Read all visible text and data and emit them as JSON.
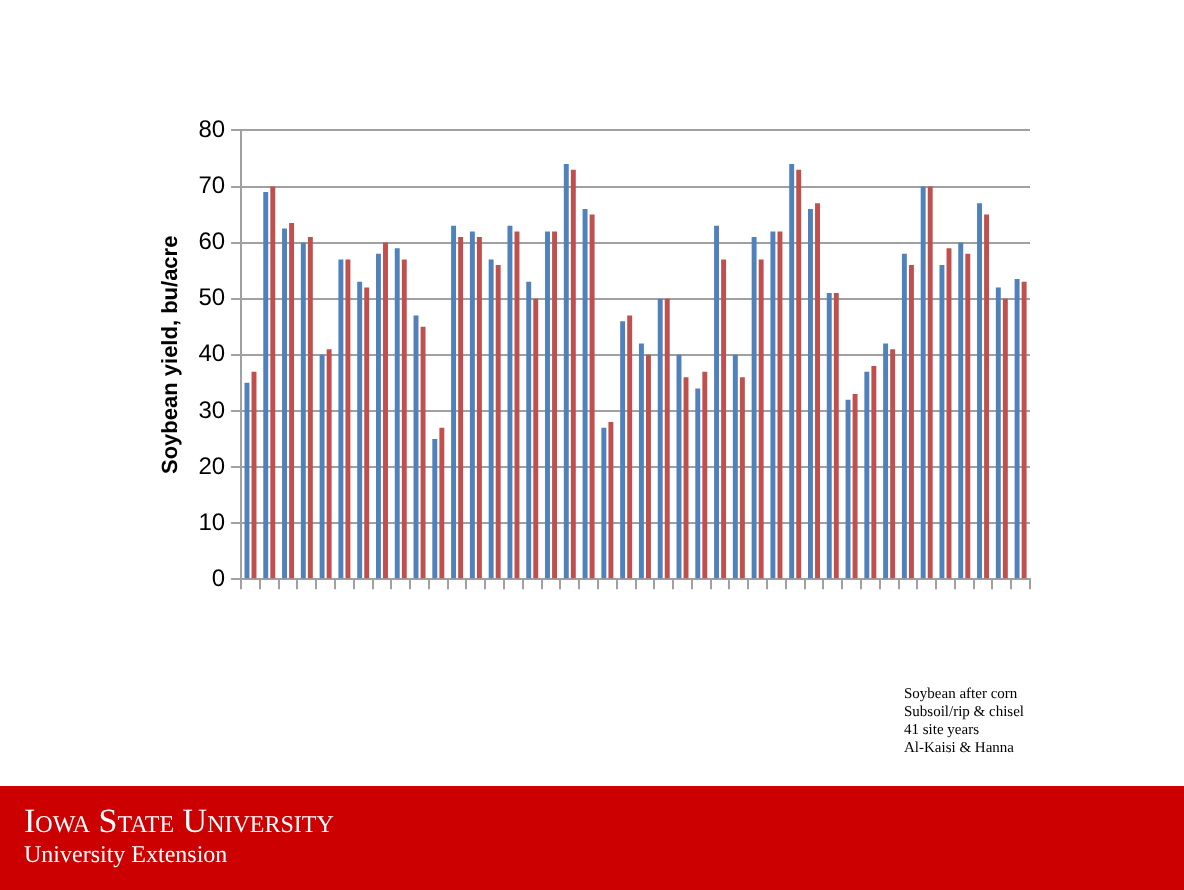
{
  "chart_data": {
    "type": "bar",
    "ylabel": "Soybean yield, bu/acre",
    "categories": [
      null,
      null,
      null,
      null,
      null,
      null,
      null,
      null,
      null,
      null,
      null,
      null,
      null,
      null,
      null,
      null,
      null,
      null,
      null,
      null,
      null,
      null,
      null,
      null,
      null,
      null,
      null,
      null,
      null,
      null,
      null,
      null,
      null,
      null,
      null,
      null,
      null,
      null,
      null,
      null,
      null,
      null
    ],
    "series": [
      {
        "color": "#4f81bd",
        "values": [
          35,
          69,
          62.5,
          60,
          40,
          57,
          53,
          58,
          59,
          47,
          25,
          63,
          62,
          57,
          63,
          53,
          62,
          74,
          66,
          27,
          46,
          42,
          50,
          40,
          34,
          63,
          40,
          61,
          62,
          74,
          66,
          51,
          32,
          37,
          42,
          58,
          70,
          56,
          60,
          67,
          52,
          53.5
        ]
      },
      {
        "color": "#c0504d",
        "values": [
          37,
          70,
          63.5,
          61,
          41,
          57,
          52,
          60,
          57,
          45,
          27,
          61,
          61,
          56,
          62,
          50,
          62,
          73,
          65,
          28,
          47,
          40,
          50,
          36,
          37,
          57,
          36,
          57,
          62,
          73,
          67,
          51,
          33,
          38,
          41,
          56,
          70,
          59,
          58,
          65,
          50,
          53
        ]
      }
    ],
    "ylim": [
      0,
      80
    ],
    "yticks": [
      0,
      10,
      20,
      30,
      40,
      50,
      60,
      70,
      80
    ],
    "grid": "y",
    "annotations": [
      "Soybean after corn",
      "Subsoil/rip & chisel",
      "41 site years",
      "Al-Kaisi & Hanna",
      "Iowa State University",
      "University Extension"
    ]
  }
}
